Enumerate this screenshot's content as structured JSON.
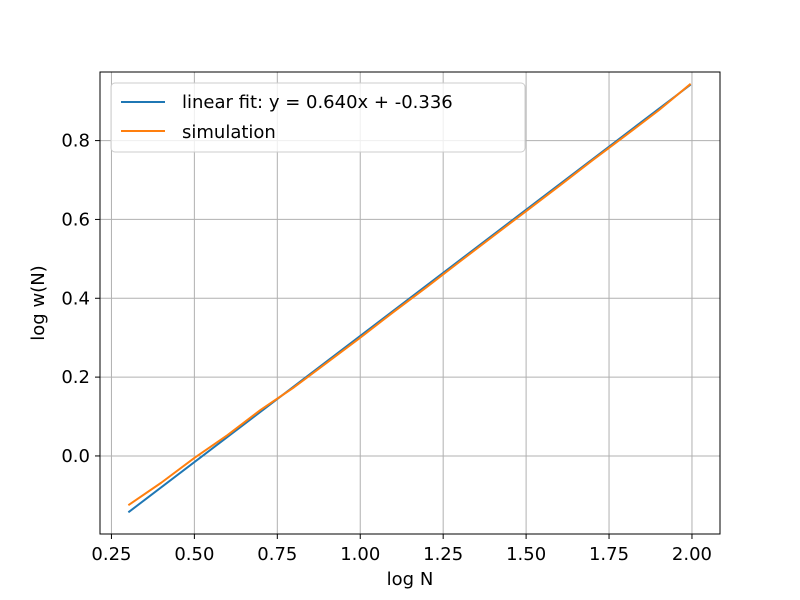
{
  "chart_data": {
    "type": "line",
    "title": "",
    "xlabel": "log N",
    "ylabel": "log w(N)",
    "xlim": [
      0.2155,
      2.0845
    ],
    "ylim": [
      -0.198,
      0.974
    ],
    "xticks": [
      0.25,
      0.5,
      0.75,
      1.0,
      1.25,
      1.5,
      1.75,
      2.0
    ],
    "xtick_labels": [
      "0.25",
      "0.50",
      "0.75",
      "1.00",
      "1.25",
      "1.50",
      "1.75",
      "2.00"
    ],
    "yticks": [
      0.0,
      0.2,
      0.4,
      0.6,
      0.8
    ],
    "ytick_labels": [
      "0.0",
      "0.2",
      "0.4",
      "0.6",
      "0.8"
    ],
    "grid": true,
    "legend_position": "top-left",
    "series": [
      {
        "name": "linear fit: y = 0.640x + -0.336",
        "color": "#1f77b4",
        "x": [
          0.301,
          1.996
        ],
        "y": [
          -0.143,
          0.942
        ]
      },
      {
        "name": "simulation",
        "color": "#ff7f0e",
        "x": [
          0.301,
          0.4,
          0.5,
          0.6,
          0.7,
          0.8,
          0.9,
          1.0,
          1.1,
          1.2,
          1.3,
          1.4,
          1.5,
          1.6,
          1.7,
          1.8,
          1.9,
          1.996
        ],
        "y": [
          -0.125,
          -0.068,
          -0.005,
          0.053,
          0.117,
          0.174,
          0.237,
          0.3,
          0.365,
          0.428,
          0.493,
          0.557,
          0.621,
          0.685,
          0.75,
          0.813,
          0.877,
          0.944
        ]
      }
    ]
  }
}
